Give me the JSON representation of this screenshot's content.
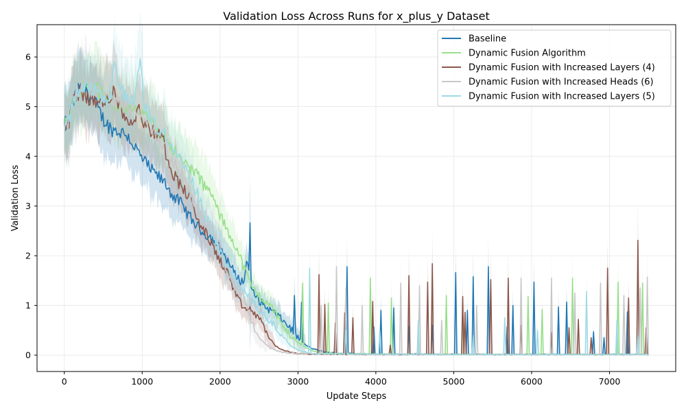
{
  "chart_data": {
    "type": "line",
    "title": "Validation Loss Across Runs for x_plus_y Dataset",
    "xlabel": "Update Steps",
    "ylabel": "Validation Loss",
    "xlim": [
      -350,
      7850
    ],
    "ylim": [
      -0.33,
      6.65
    ],
    "xticks": [
      0,
      1000,
      2000,
      3000,
      4000,
      5000,
      6000,
      7000
    ],
    "yticks": [
      0,
      1,
      2,
      3,
      4,
      5,
      6
    ],
    "grid": true,
    "legend_position": "top-right",
    "shaded_band": "min-max range across runs",
    "series": [
      {
        "name": "Baseline",
        "color": "#1f77b4",
        "band_color": "#1f77b4",
        "points": [
          [
            0,
            4.66
          ],
          [
            50,
            4.65
          ],
          [
            100,
            5.0
          ],
          [
            150,
            5.25
          ],
          [
            200,
            5.35
          ],
          [
            250,
            5.37
          ],
          [
            300,
            5.27
          ],
          [
            400,
            5.05
          ],
          [
            500,
            4.75
          ],
          [
            600,
            4.55
          ],
          [
            700,
            4.5
          ],
          [
            800,
            4.45
          ],
          [
            900,
            4.2
          ],
          [
            1000,
            3.95
          ],
          [
            1100,
            3.75
          ],
          [
            1200,
            3.6
          ],
          [
            1300,
            3.45
          ],
          [
            1400,
            3.2
          ],
          [
            1500,
            3.05
          ],
          [
            1600,
            2.8
          ],
          [
            1700,
            2.6
          ],
          [
            1800,
            2.45
          ],
          [
            1900,
            2.35
          ],
          [
            2000,
            2.15
          ],
          [
            2100,
            1.9
          ],
          [
            2200,
            1.6
          ],
          [
            2300,
            1.45
          ],
          [
            2350,
            1.95
          ],
          [
            2400,
            1.3
          ],
          [
            2500,
            1.1
          ],
          [
            2600,
            0.95
          ],
          [
            2700,
            0.85
          ],
          [
            2800,
            0.7
          ],
          [
            2900,
            0.55
          ],
          [
            3000,
            0.35
          ],
          [
            3100,
            0.2
          ],
          [
            3200,
            0.12
          ],
          [
            3300,
            0.08
          ],
          [
            3400,
            0.05
          ],
          [
            3500,
            0.04
          ],
          [
            3600,
            0.03
          ],
          [
            3700,
            0.03
          ],
          [
            4000,
            0.02
          ],
          [
            5000,
            0.01
          ],
          [
            6000,
            0.01
          ],
          [
            7000,
            0.01
          ],
          [
            7500,
            0.01
          ]
        ],
        "spikes": [
          [
            2380,
            2.66
          ],
          [
            2960,
            1.2
          ],
          [
            3040,
            1.06
          ],
          [
            3630,
            1.78
          ],
          [
            3980,
            0.57
          ],
          [
            4060,
            0.9
          ],
          [
            4230,
            0.95
          ],
          [
            4430,
            0.58
          ],
          [
            4720,
            0.6
          ],
          [
            5030,
            1.66
          ],
          [
            5180,
            0.9
          ],
          [
            5250,
            1.58
          ],
          [
            5440,
            1.78
          ],
          [
            5680,
            0.57
          ],
          [
            5760,
            1.0
          ],
          [
            6030,
            1.47
          ],
          [
            6250,
            0.45
          ],
          [
            6350,
            0.97
          ],
          [
            6450,
            1.07
          ],
          [
            6800,
            0.47
          ],
          [
            6930,
            0.35
          ],
          [
            7230,
            0.87
          ]
        ]
      },
      {
        "name": "Dynamic Fusion Algorithm",
        "color": "#98df8a",
        "band_color": "#98df8a",
        "points": [
          [
            0,
            4.64
          ],
          [
            50,
            4.63
          ],
          [
            100,
            5.0
          ],
          [
            150,
            5.25
          ],
          [
            200,
            5.35
          ],
          [
            300,
            5.4
          ],
          [
            400,
            5.35
          ],
          [
            500,
            5.2
          ],
          [
            600,
            5.1
          ],
          [
            700,
            5.05
          ],
          [
            800,
            5.0
          ],
          [
            900,
            4.9
          ],
          [
            1000,
            4.8
          ],
          [
            1100,
            4.7
          ],
          [
            1200,
            4.55
          ],
          [
            1300,
            4.4
          ],
          [
            1400,
            4.15
          ],
          [
            1500,
            3.9
          ],
          [
            1600,
            3.8
          ],
          [
            1700,
            3.65
          ],
          [
            1800,
            3.4
          ],
          [
            1900,
            3.2
          ],
          [
            2000,
            2.8
          ],
          [
            2100,
            2.5
          ],
          [
            2200,
            2.2
          ],
          [
            2300,
            1.8
          ],
          [
            2400,
            1.4
          ],
          [
            2500,
            1.2
          ],
          [
            2600,
            1.05
          ],
          [
            2700,
            0.9
          ],
          [
            2800,
            0.6
          ],
          [
            2900,
            0.4
          ],
          [
            3000,
            0.25
          ],
          [
            3100,
            0.15
          ],
          [
            3200,
            0.08
          ],
          [
            3300,
            0.05
          ],
          [
            3500,
            0.03
          ],
          [
            4000,
            0.02
          ],
          [
            5000,
            0.01
          ],
          [
            6000,
            0.01
          ],
          [
            7000,
            0.01
          ],
          [
            7500,
            0.01
          ]
        ],
        "spikes": [
          [
            3060,
            1.45
          ],
          [
            3390,
            1.05
          ],
          [
            3930,
            1.55
          ],
          [
            4200,
            1.15
          ],
          [
            4900,
            1.2
          ],
          [
            5110,
            0.75
          ],
          [
            5960,
            1.18
          ],
          [
            6130,
            0.92
          ],
          [
            6520,
            1.55
          ],
          [
            7110,
            1.47
          ],
          [
            7420,
            1.45
          ]
        ]
      },
      {
        "name": "Dynamic Fusion with Increased Layers (4)",
        "color": "#8c564b",
        "band_color": "#8c564b",
        "points": [
          [
            0,
            4.65
          ],
          [
            50,
            4.64
          ],
          [
            100,
            5.0
          ],
          [
            150,
            5.25
          ],
          [
            200,
            5.32
          ],
          [
            300,
            5.2
          ],
          [
            400,
            5.1
          ],
          [
            500,
            5.05
          ],
          [
            600,
            5.2
          ],
          [
            640,
            5.45
          ],
          [
            700,
            5.0
          ],
          [
            800,
            4.75
          ],
          [
            900,
            4.7
          ],
          [
            960,
            5.1
          ],
          [
            1000,
            4.7
          ],
          [
            1100,
            4.55
          ],
          [
            1200,
            4.4
          ],
          [
            1250,
            4.5
          ],
          [
            1300,
            4.1
          ],
          [
            1400,
            3.65
          ],
          [
            1500,
            3.4
          ],
          [
            1600,
            3.2
          ],
          [
            1700,
            2.75
          ],
          [
            1800,
            2.5
          ],
          [
            1900,
            2.2
          ],
          [
            2000,
            1.9
          ],
          [
            2100,
            1.65
          ],
          [
            2200,
            1.2
          ],
          [
            2300,
            0.95
          ],
          [
            2400,
            0.9
          ],
          [
            2500,
            0.75
          ],
          [
            2600,
            0.45
          ],
          [
            2700,
            0.2
          ],
          [
            2800,
            0.1
          ],
          [
            2900,
            0.06
          ],
          [
            3000,
            0.03
          ],
          [
            3200,
            0.02
          ],
          [
            4000,
            0.01
          ],
          [
            5000,
            0.01
          ],
          [
            6000,
            0.01
          ],
          [
            7000,
            0.01
          ],
          [
            7500,
            0.01
          ]
        ],
        "spikes": [
          [
            3270,
            1.62
          ],
          [
            3350,
            1.02
          ],
          [
            3480,
            0.65
          ],
          [
            3600,
            0.85
          ],
          [
            3700,
            0.75
          ],
          [
            3960,
            1.08
          ],
          [
            4190,
            0.2
          ],
          [
            4420,
            1.6
          ],
          [
            4660,
            1.47
          ],
          [
            4720,
            1.84
          ],
          [
            5110,
            1.18
          ],
          [
            5140,
            0.86
          ],
          [
            5480,
            1.52
          ],
          [
            5700,
            1.55
          ],
          [
            5870,
            0.6
          ],
          [
            6260,
            0.45
          ],
          [
            6480,
            0.55
          ],
          [
            6600,
            0.72
          ],
          [
            6760,
            0.35
          ],
          [
            6970,
            1.75
          ],
          [
            7240,
            1.15
          ],
          [
            7360,
            2.31
          ],
          [
            7470,
            0.55
          ]
        ]
      },
      {
        "name": "Dynamic Fusion with Increased Heads (6)",
        "color": "#c7c7c7",
        "band_color": "#c7c7c7",
        "points": [
          [
            0,
            4.65
          ],
          [
            50,
            4.64
          ],
          [
            100,
            5.0
          ],
          [
            150,
            5.25
          ],
          [
            200,
            5.36
          ],
          [
            300,
            5.4
          ],
          [
            400,
            5.3
          ],
          [
            500,
            5.2
          ],
          [
            600,
            5.15
          ],
          [
            700,
            5.1
          ],
          [
            800,
            5.0
          ],
          [
            900,
            4.95
          ],
          [
            1000,
            4.85
          ],
          [
            1100,
            4.65
          ],
          [
            1200,
            4.4
          ],
          [
            1300,
            4.2
          ],
          [
            1400,
            3.85
          ],
          [
            1500,
            3.7
          ],
          [
            1600,
            3.3
          ],
          [
            1700,
            2.95
          ],
          [
            1800,
            2.7
          ],
          [
            1900,
            2.5
          ],
          [
            2000,
            2.2
          ],
          [
            2100,
            1.6
          ],
          [
            2200,
            1.35
          ],
          [
            2300,
            1.2
          ],
          [
            2400,
            0.7
          ],
          [
            2500,
            0.35
          ],
          [
            2600,
            0.2
          ],
          [
            2700,
            0.1
          ],
          [
            2800,
            0.06
          ],
          [
            2900,
            0.04
          ],
          [
            3000,
            0.03
          ],
          [
            3500,
            0.02
          ],
          [
            4000,
            0.01
          ],
          [
            5000,
            0.01
          ],
          [
            6000,
            0.01
          ],
          [
            7000,
            0.01
          ],
          [
            7500,
            0.01
          ]
        ],
        "spikes": [
          [
            3300,
            1.0
          ],
          [
            3490,
            1.78
          ],
          [
            3620,
            1.35
          ],
          [
            3830,
            1.0
          ],
          [
            4320,
            1.45
          ],
          [
            4560,
            1.4
          ],
          [
            4850,
            0.7
          ],
          [
            5300,
            1.0
          ],
          [
            5870,
            1.55
          ],
          [
            6260,
            1.55
          ],
          [
            6560,
            1.25
          ],
          [
            6880,
            1.45
          ],
          [
            7180,
            1.2
          ],
          [
            7400,
            1.35
          ],
          [
            7490,
            1.57
          ]
        ]
      },
      {
        "name": "Dynamic Fusion with Increased Layers (5)",
        "color": "#9edae5",
        "band_color": "#9edae5",
        "points": [
          [
            0,
            4.63
          ],
          [
            50,
            4.62
          ],
          [
            100,
            5.0
          ],
          [
            150,
            5.25
          ],
          [
            200,
            5.35
          ],
          [
            300,
            5.38
          ],
          [
            400,
            5.3
          ],
          [
            500,
            5.1
          ],
          [
            600,
            5.05
          ],
          [
            620,
            5.9
          ],
          [
            700,
            5.4
          ],
          [
            800,
            5.2
          ],
          [
            900,
            5.1
          ],
          [
            980,
            6.05
          ],
          [
            1020,
            5.0
          ],
          [
            1100,
            4.8
          ],
          [
            1200,
            4.55
          ],
          [
            1300,
            4.45
          ],
          [
            1400,
            4.15
          ],
          [
            1500,
            3.9
          ],
          [
            1600,
            3.6
          ],
          [
            1700,
            3.3
          ],
          [
            1800,
            2.9
          ],
          [
            1900,
            2.45
          ],
          [
            2000,
            2.1
          ],
          [
            2100,
            1.75
          ],
          [
            2200,
            1.5
          ],
          [
            2300,
            1.3
          ],
          [
            2400,
            1.1
          ],
          [
            2500,
            0.9
          ],
          [
            2600,
            0.75
          ],
          [
            2700,
            0.6
          ],
          [
            2800,
            0.4
          ],
          [
            2900,
            0.2
          ],
          [
            3000,
            0.1
          ],
          [
            3100,
            0.06
          ],
          [
            3200,
            0.03
          ],
          [
            4000,
            0.02
          ],
          [
            5000,
            0.01
          ],
          [
            6000,
            0.01
          ],
          [
            7000,
            0.01
          ],
          [
            7500,
            0.01
          ]
        ],
        "spikes": [
          [
            3150,
            1.75
          ],
          [
            3620,
            0.5
          ],
          [
            4050,
            0.5
          ],
          [
            4550,
            0.7
          ],
          [
            5250,
            0.4
          ],
          [
            5650,
            0.75
          ],
          [
            6080,
            0.5
          ],
          [
            6700,
            1.28
          ],
          [
            7090,
            0.7
          ],
          [
            7370,
            0.4
          ]
        ]
      }
    ]
  }
}
